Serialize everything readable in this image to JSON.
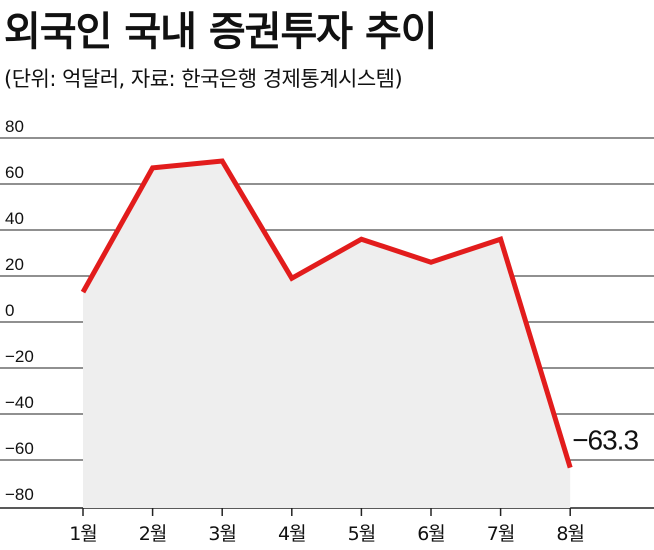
{
  "header": {
    "title": "외국인 국내 증권투자 추이",
    "subtitle": "(단위: 억달러, 자료: 한국은행 경제통계시스템)"
  },
  "chart_data": {
    "type": "area",
    "categories": [
      "1월",
      "2월",
      "3월",
      "4월",
      "5월",
      "6월",
      "7월",
      "8월"
    ],
    "series": [
      {
        "values": [
          13,
          67,
          70,
          19,
          36,
          26,
          36,
          -63.3
        ]
      }
    ],
    "ylim": [
      -80,
      80
    ],
    "yticks": [
      80,
      60,
      40,
      20,
      0,
      -20,
      -40,
      -60,
      -80
    ],
    "ytick_labels": [
      "80",
      "60",
      "40",
      "20",
      "0",
      "−20",
      "−40",
      "−60",
      "−80"
    ],
    "grid": true,
    "annotations": [
      {
        "category": "8월",
        "value": -63.3,
        "text": "−63.3"
      }
    ],
    "colors": {
      "line": "#e21c1c",
      "fill": "#eeeeee",
      "grid": "#222222"
    }
  }
}
